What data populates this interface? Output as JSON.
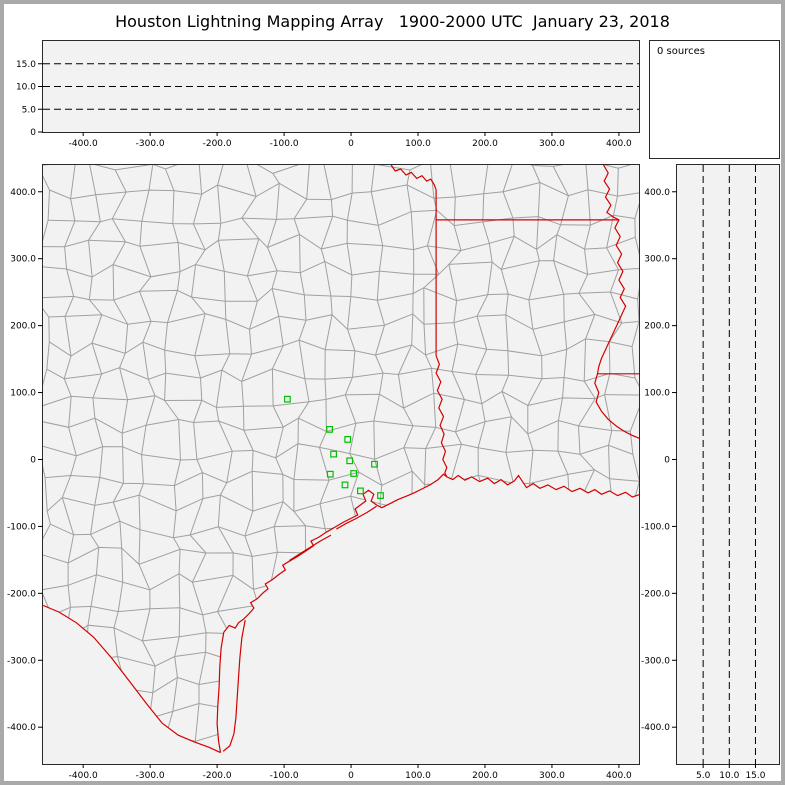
{
  "window": {
    "title": "Houston Lightning Mapping Array   1900-2000 UTC  January 23, 2018"
  },
  "sources_panel": {
    "label": "0 sources"
  },
  "colors": {
    "background": "#ffffff",
    "frame": "#a9a9a9",
    "panel_bg": "#f2f2f2",
    "county_line": "#a0a0a0",
    "boundary_line": "#d40000",
    "station_marker": "#00c000",
    "dash_line": "#000000",
    "text": "#000000"
  },
  "chart_data": [
    {
      "id": "altitude_vs_east_west",
      "type": "scatter",
      "x_ticks": [
        -400,
        -300,
        -200,
        -100,
        0,
        100,
        200,
        300,
        400
      ],
      "x_tick_labels": [
        "-400.0",
        "-300.0",
        "-200.0",
        "-100.0",
        "0",
        "100.0",
        "200.0",
        "300.0",
        "400.0"
      ],
      "y_ticks": [
        15,
        10,
        5,
        0
      ],
      "y_tick_labels": [
        "15.0",
        "10.0",
        "5.0",
        "0"
      ],
      "xlim": [
        -460,
        430
      ],
      "ylim": [
        0,
        20
      ],
      "dashed_hlines": [
        5,
        10,
        15
      ],
      "points": []
    },
    {
      "id": "plan_view_map",
      "type": "scatter",
      "x_ticks": [
        -400,
        -300,
        -200,
        -100,
        0,
        100,
        200,
        300,
        400
      ],
      "x_tick_labels": [
        "-400.0",
        "-300.0",
        "-200.0",
        "-100.0",
        "0",
        "100.0",
        "200.0",
        "300.0",
        "400.0"
      ],
      "y_ticks": [
        400,
        300,
        200,
        100,
        0,
        -100,
        -200,
        -300,
        -400
      ],
      "y_tick_labels": [
        "400.0",
        "300.0",
        "200.0",
        "100.0",
        "0",
        "-100.0",
        "-200.0",
        "-300.0",
        "-400.0"
      ],
      "xlim": [
        -460,
        430
      ],
      "ylim": [
        -455,
        440
      ],
      "points": [],
      "station_markers": [
        [
          -95,
          90
        ],
        [
          -32,
          45
        ],
        [
          -5,
          30
        ],
        [
          -26,
          8
        ],
        [
          -2,
          -2
        ],
        [
          -31,
          -22
        ],
        [
          4,
          -21
        ],
        [
          -9,
          -38
        ],
        [
          14,
          -47
        ],
        [
          35,
          -7
        ],
        [
          44,
          -54
        ]
      ]
    },
    {
      "id": "altitude_vs_north_south",
      "type": "scatter",
      "x_ticks": [
        5,
        10,
        15
      ],
      "x_tick_labels": [
        "5.0",
        "10.0",
        "15.0"
      ],
      "y_ticks": [
        400,
        300,
        200,
        100,
        0,
        -100,
        -200,
        -300,
        -400
      ],
      "y_tick_labels": [
        "400.0",
        "300.0",
        "200.0",
        "100.0",
        "0",
        "-100.0",
        "-200.0",
        "-300.0",
        "-400.0"
      ],
      "xlim": [
        0,
        19.5
      ],
      "ylim": [
        -455,
        440
      ],
      "dashed_vlines": [
        5,
        10,
        15
      ],
      "points": []
    }
  ],
  "map_geometry": {
    "boundaries": {
      "red_river": [
        [
          60,
          440
        ],
        [
          66,
          431
        ],
        [
          74,
          434
        ],
        [
          82,
          425
        ],
        [
          90,
          429
        ],
        [
          98,
          420
        ],
        [
          106,
          424
        ],
        [
          113,
          416
        ],
        [
          119,
          419
        ],
        [
          124,
          411
        ],
        [
          127,
          403
        ]
      ],
      "tx_ar_border": [
        [
          127,
          403
        ],
        [
          127,
          155
        ]
      ],
      "la_ar_border": [
        [
          127,
          358
        ],
        [
          400,
          358
        ]
      ],
      "mississippi_river": [
        [
          377,
          440
        ],
        [
          384,
          428
        ],
        [
          378,
          416
        ],
        [
          386,
          404
        ],
        [
          380,
          392
        ],
        [
          388,
          380
        ],
        [
          382,
          369
        ],
        [
          392,
          362
        ],
        [
          400,
          358
        ],
        [
          394,
          346
        ],
        [
          402,
          333
        ],
        [
          396,
          320
        ],
        [
          404,
          307
        ],
        [
          398,
          294
        ],
        [
          406,
          281
        ],
        [
          400,
          268
        ],
        [
          408,
          255
        ],
        [
          402,
          242
        ],
        [
          410,
          229
        ],
        [
          404,
          216
        ],
        [
          398,
          203
        ],
        [
          392,
          190
        ],
        [
          386,
          177
        ],
        [
          380,
          164
        ],
        [
          374,
          151
        ],
        [
          370,
          139
        ],
        [
          368,
          128
        ],
        [
          364,
          114
        ],
        [
          370,
          100
        ],
        [
          366,
          86
        ],
        [
          374,
          72
        ],
        [
          384,
          60
        ],
        [
          396,
          50
        ],
        [
          408,
          42
        ],
        [
          420,
          36
        ],
        [
          432,
          31
        ]
      ],
      "la_ms_border": [
        [
          368,
          128
        ],
        [
          432,
          128
        ]
      ],
      "sabine_river": [
        [
          127,
          155
        ],
        [
          132,
          142
        ],
        [
          127,
          129
        ],
        [
          134,
          116
        ],
        [
          129,
          103
        ],
        [
          136,
          90
        ],
        [
          131,
          77
        ],
        [
          138,
          64
        ],
        [
          133,
          51
        ],
        [
          139,
          38
        ],
        [
          135,
          25
        ],
        [
          141,
          12
        ],
        [
          137,
          0
        ],
        [
          143,
          -12
        ],
        [
          140,
          -20
        ],
        [
          143,
          -26
        ]
      ],
      "coastline": [
        [
          -195,
          -438
        ],
        [
          -198,
          -420
        ],
        [
          -200,
          -395
        ],
        [
          -199,
          -368
        ],
        [
          -197,
          -340
        ],
        [
          -196,
          -310
        ],
        [
          -194,
          -282
        ],
        [
          -190,
          -258
        ],
        [
          -182,
          -248
        ],
        [
          -173,
          -252
        ],
        [
          -168,
          -244
        ],
        [
          -160,
          -238
        ],
        [
          -152,
          -230
        ],
        [
          -145,
          -222
        ],
        [
          -150,
          -214
        ],
        [
          -140,
          -208
        ],
        [
          -132,
          -200
        ],
        [
          -124,
          -193
        ],
        [
          -128,
          -186
        ],
        [
          -118,
          -180
        ],
        [
          -108,
          -172
        ],
        [
          -98,
          -165
        ],
        [
          -102,
          -158
        ],
        [
          -92,
          -152
        ],
        [
          -80,
          -145
        ],
        [
          -68,
          -137
        ],
        [
          -56,
          -129
        ],
        [
          -60,
          -122
        ],
        [
          -48,
          -116
        ],
        [
          -36,
          -108
        ],
        [
          -24,
          -101
        ],
        [
          -12,
          -94
        ],
        [
          0,
          -88
        ],
        [
          10,
          -83
        ],
        [
          6,
          -74
        ],
        [
          14,
          -68
        ],
        [
          22,
          -62
        ],
        [
          18,
          -52
        ],
        [
          26,
          -46
        ],
        [
          34,
          -52
        ],
        [
          30,
          -62
        ],
        [
          38,
          -68
        ],
        [
          46,
          -72
        ],
        [
          58,
          -66
        ],
        [
          70,
          -60
        ],
        [
          82,
          -55
        ],
        [
          94,
          -50
        ],
        [
          106,
          -44
        ],
        [
          118,
          -38
        ],
        [
          130,
          -30
        ],
        [
          138,
          -22
        ],
        [
          143,
          -26
        ],
        [
          152,
          -30
        ],
        [
          160,
          -24
        ],
        [
          170,
          -31
        ],
        [
          180,
          -26
        ],
        [
          192,
          -33
        ],
        [
          204,
          -28
        ],
        [
          214,
          -36
        ],
        [
          224,
          -30
        ],
        [
          234,
          -38
        ],
        [
          244,
          -32
        ],
        [
          250,
          -24
        ],
        [
          256,
          -33
        ],
        [
          262,
          -42
        ],
        [
          272,
          -36
        ],
        [
          282,
          -43
        ],
        [
          294,
          -38
        ],
        [
          306,
          -45
        ],
        [
          318,
          -40
        ],
        [
          330,
          -48
        ],
        [
          342,
          -43
        ],
        [
          354,
          -50
        ],
        [
          364,
          -45
        ],
        [
          374,
          -52
        ],
        [
          386,
          -47
        ],
        [
          398,
          -54
        ],
        [
          410,
          -49
        ],
        [
          420,
          -56
        ],
        [
          432,
          -52
        ]
      ],
      "rio_grande": [
        [
          -460,
          -218
        ],
        [
          -436,
          -228
        ],
        [
          -410,
          -244
        ],
        [
          -384,
          -266
        ],
        [
          -358,
          -296
        ],
        [
          -332,
          -330
        ],
        [
          -306,
          -364
        ],
        [
          -282,
          -394
        ],
        [
          -258,
          -412
        ],
        [
          -234,
          -422
        ],
        [
          -212,
          -430
        ],
        [
          -195,
          -438
        ]
      ],
      "padre_island": [
        [
          -158,
          -240
        ],
        [
          -163,
          -266
        ],
        [
          -166,
          -296
        ],
        [
          -168,
          -326
        ],
        [
          -170,
          -356
        ],
        [
          -172,
          -386
        ],
        [
          -175,
          -410
        ],
        [
          -181,
          -428
        ],
        [
          -191,
          -436
        ]
      ],
      "galveston_island": [
        [
          38,
          -70
        ],
        [
          24,
          -79
        ],
        [
          8,
          -88
        ],
        [
          -8,
          -96
        ],
        [
          -22,
          -104
        ]
      ],
      "matagorda_peninsula": [
        [
          -30,
          -113
        ],
        [
          -46,
          -122
        ],
        [
          -62,
          -132
        ],
        [
          -78,
          -142
        ],
        [
          -92,
          -151
        ]
      ]
    },
    "station_marker_size_km": 8
  }
}
